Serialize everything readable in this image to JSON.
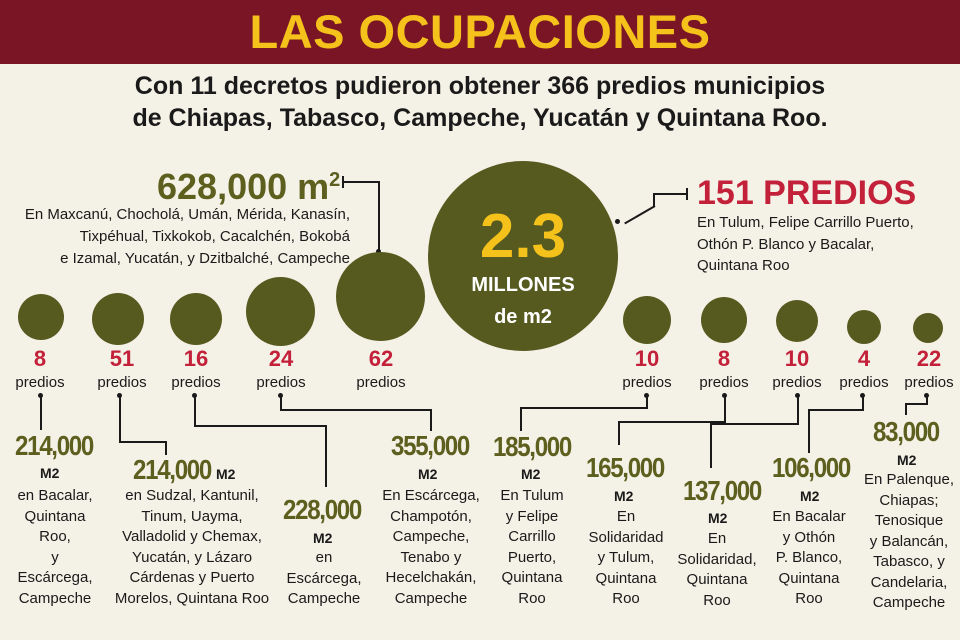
{
  "title": "LAS OCUPACIONES",
  "subtitle": [
    "Con 11 decretos pudieron obtener 366 predios municipios",
    "de Chiapas, Tabasco, Campeche, Yucatán y Quintana Roo."
  ],
  "center": {
    "value": "2.3",
    "label_line1": "MILLONES",
    "label_line2": "de m2"
  },
  "top_left": {
    "area": "628,000 m",
    "sup": "2",
    "places": [
      "En Maxcanú, Chocholá, Umán, Mérida, Kanasín,",
      "Tixpéhual, Tixkokob, Cacalchén, Bokobá",
      "e Izamal, Yucatán, y Dzitbalché, Campeche"
    ]
  },
  "top_right": {
    "count": "151 PREDIOS",
    "places": [
      "En Tulum, Felipe Carrillo Puerto,",
      "Othón P. Blanco y Bacalar,",
      "Quintana Roo"
    ]
  },
  "count_label": "predios",
  "unit_label": "M2",
  "groups": [
    {
      "count": "8",
      "area": "214,000",
      "unit": "M2",
      "desc": [
        "en Bacalar,",
        "Quintana",
        "Roo,",
        "y",
        "Escárcega,",
        "Campeche"
      ]
    },
    {
      "count": "51",
      "area": "214,000",
      "unit": "M2",
      "desc": [
        "en  Sudzal, Kantunil,",
        "Tinum, Uayma,",
        "Valladolid y Chemax,",
        "Yucatán, y Lázaro",
        "Cárdenas y Puerto",
        "Morelos, Quintana Roo"
      ]
    },
    {
      "count": "16",
      "area": "228,000",
      "unit": "M2",
      "desc": [
        "en",
        "Escárcega,",
        "Campeche"
      ]
    },
    {
      "count": "24",
      "area": "355,000",
      "unit": "M2",
      "desc": [
        "En Escárcega,",
        "Champotón,",
        "Campeche,",
        "Tenabo y",
        "Hecelchakán,",
        "Campeche"
      ]
    },
    {
      "count": "62"
    },
    {
      "count": "10",
      "area": "185,000",
      "unit": "M2",
      "desc": [
        "En Tulum",
        "y Felipe",
        "Carrillo",
        "Puerto,",
        "Quintana",
        "Roo"
      ]
    },
    {
      "count": "8",
      "area": "165,000",
      "unit": "M2",
      "desc": [
        "En",
        "Solidaridad",
        "y Tulum,",
        "Quintana",
        "Roo"
      ]
    },
    {
      "count": "10",
      "area": "137,000",
      "unit": "M2",
      "desc": [
        "En",
        "Solidaridad,",
        "Quintana",
        "Roo"
      ]
    },
    {
      "count": "4",
      "area": "106,000",
      "unit": "M2",
      "desc": [
        "En Bacalar",
        "y Othón",
        "P. Blanco,",
        "Quintana",
        "Roo"
      ]
    },
    {
      "count": "22",
      "area": "83,000",
      "unit": "M2",
      "desc": [
        "En Palenque,",
        "Chiapas;",
        "Tenosique",
        "y Balancán,",
        "Tabasco, y",
        "Candelaria,",
        "Campeche"
      ]
    }
  ],
  "colors": {
    "banner": "#7a1526",
    "title": "#f5c21b",
    "circle": "#565a1f",
    "count": "#c3203a",
    "area": "#5c5f1e",
    "background": "#f4f1e6"
  }
}
